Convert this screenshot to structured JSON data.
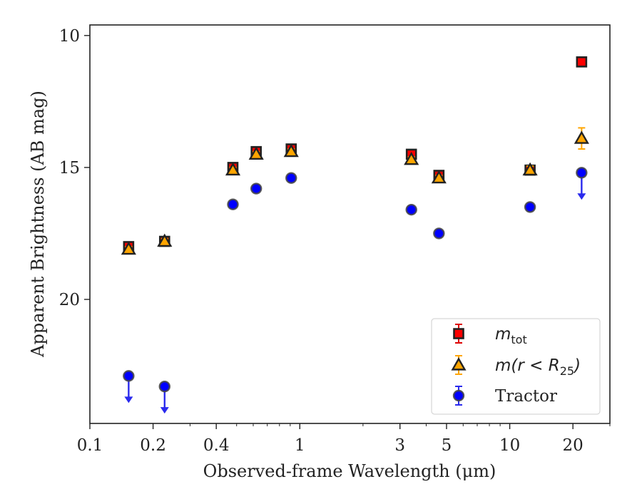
{
  "chart_data": {
    "type": "scatter",
    "xlabel": "Observed-frame Wavelength (μm)",
    "ylabel": "Apparent Brightness (AB mag)",
    "x_scale": "log",
    "xlim": [
      0.1,
      30
    ],
    "ylim": [
      24.7,
      9.6
    ],
    "y_inverted": true,
    "x_ticks": [
      0.1,
      0.2,
      0.4,
      1,
      3,
      5,
      10,
      20
    ],
    "x_tick_labels": [
      "0.1",
      "0.2",
      "0.4",
      "1",
      "3",
      "5",
      "10",
      "20"
    ],
    "y_ticks": [
      10,
      15,
      20
    ],
    "y_tick_labels": [
      "10",
      "15",
      "20"
    ],
    "grid": false,
    "legend_position": "lower-right",
    "series": [
      {
        "legend_label": "m_tot",
        "marker": "square",
        "color": "#ff0000",
        "edge_color": "#222222",
        "errorbar_color": "#dd0000",
        "x": [
          0.153,
          0.227,
          0.48,
          0.62,
          0.91,
          3.4,
          4.6,
          12.5,
          22.0
        ],
        "y": [
          18.0,
          17.8,
          15.0,
          14.4,
          14.3,
          14.5,
          15.3,
          15.1,
          11.0
        ],
        "yerr": [
          0.1,
          0.1,
          0.1,
          0.1,
          0.1,
          0.1,
          0.1,
          0.1,
          0.05
        ]
      },
      {
        "legend_label": "m(r < R_25)",
        "marker": "triangle",
        "color": "#ffa500",
        "edge_color": "#222222",
        "errorbar_color": "#ffa500",
        "x": [
          0.153,
          0.227,
          0.48,
          0.62,
          0.91,
          3.4,
          4.6,
          12.5,
          22.0
        ],
        "y": [
          18.1,
          17.8,
          15.1,
          14.5,
          14.4,
          14.7,
          15.4,
          15.1,
          13.9
        ],
        "yerr": [
          0.1,
          0.1,
          0.1,
          0.1,
          0.1,
          0.1,
          0.1,
          0.15,
          0.4
        ]
      },
      {
        "legend_label": "Tractor",
        "marker": "circle",
        "color": "#0000ff",
        "edge_color": "#444444",
        "errorbar_color": "#2a2aee",
        "x": [
          0.153,
          0.227,
          0.48,
          0.62,
          0.91,
          3.4,
          4.6,
          12.5,
          22.0
        ],
        "y": [
          22.9,
          23.3,
          16.4,
          15.8,
          15.4,
          16.6,
          17.5,
          16.5,
          15.2
        ],
        "yerr": [
          0.05,
          0.05,
          0.05,
          0.05,
          0.05,
          0.05,
          0.05,
          0.05,
          0.05
        ],
        "upper_limit": [
          true,
          true,
          false,
          false,
          false,
          false,
          false,
          false,
          true
        ]
      }
    ],
    "legend": {
      "entries": [
        {
          "series": 0,
          "text": "m",
          "sub": "tot"
        },
        {
          "series": 1,
          "text": "m(r < R",
          "sub": "25",
          "suffix": ")"
        },
        {
          "series": 2,
          "text": "Tractor",
          "sub": "",
          "suffix": ""
        }
      ]
    }
  }
}
